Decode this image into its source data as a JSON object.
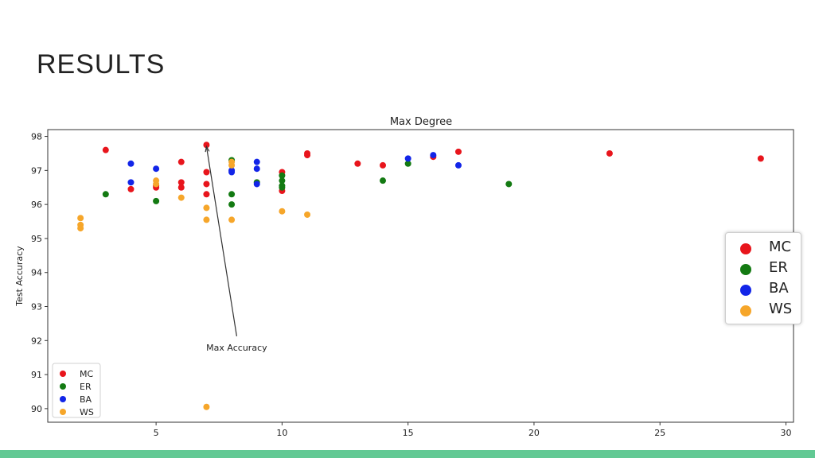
{
  "slide": {
    "title": "RESULTS"
  },
  "colors": {
    "MC": "#e8151c",
    "ER": "#137a12",
    "BA": "#1225e8",
    "WS": "#f6a62a",
    "accent": "#62c994"
  },
  "chart_data": {
    "type": "scatter",
    "title": "Max Degree",
    "xlabel": "",
    "ylabel": "Test Accuracy",
    "xlim": [
      0.7,
      30.3
    ],
    "ylim": [
      89.6,
      98.2
    ],
    "xticks": [
      5,
      10,
      15,
      20,
      25,
      30
    ],
    "yticks": [
      90,
      91,
      92,
      93,
      94,
      95,
      96,
      97,
      98
    ],
    "grid": false,
    "legend_placement": "lower-left",
    "legend_entries": [
      "MC",
      "ER",
      "BA",
      "WS"
    ],
    "annotation": {
      "text": "Max Accuracy",
      "point": [
        7,
        97.75
      ],
      "text_at": [
        8.2,
        91.8
      ]
    },
    "series": [
      {
        "name": "MC",
        "color": "#e8151c",
        "points": [
          [
            3,
            97.6
          ],
          [
            4,
            96.45
          ],
          [
            5,
            96.5
          ],
          [
            5,
            96.55
          ],
          [
            6,
            97.25
          ],
          [
            6,
            96.65
          ],
          [
            6,
            96.5
          ],
          [
            7,
            97.75
          ],
          [
            7,
            96.95
          ],
          [
            7,
            96.6
          ],
          [
            7,
            96.3
          ],
          [
            10,
            96.95
          ],
          [
            10,
            96.4
          ],
          [
            11,
            97.5
          ],
          [
            11,
            97.45
          ],
          [
            13,
            97.2
          ],
          [
            14,
            97.15
          ],
          [
            16,
            97.4
          ],
          [
            17,
            97.55
          ],
          [
            23,
            97.5
          ],
          [
            29,
            97.35
          ]
        ]
      },
      {
        "name": "ER",
        "color": "#137a12",
        "points": [
          [
            3,
            96.3
          ],
          [
            5,
            96.1
          ],
          [
            8,
            97.3
          ],
          [
            8,
            96.3
          ],
          [
            8,
            96.0
          ],
          [
            9,
            96.65
          ],
          [
            10,
            96.85
          ],
          [
            10,
            96.7
          ],
          [
            10,
            96.55
          ],
          [
            10,
            96.5
          ],
          [
            14,
            96.7
          ],
          [
            15,
            97.2
          ],
          [
            19,
            96.6
          ]
        ]
      },
      {
        "name": "BA",
        "color": "#1225e8",
        "points": [
          [
            4,
            97.2
          ],
          [
            4,
            96.65
          ],
          [
            5,
            97.05
          ],
          [
            8,
            97.0
          ],
          [
            8,
            96.95
          ],
          [
            9,
            97.25
          ],
          [
            9,
            97.05
          ],
          [
            9,
            96.6
          ],
          [
            15,
            97.35
          ],
          [
            16,
            97.45
          ],
          [
            17,
            97.15
          ]
        ]
      },
      {
        "name": "WS",
        "color": "#f6a62a",
        "points": [
          [
            2,
            95.6
          ],
          [
            2,
            95.4
          ],
          [
            2,
            95.3
          ],
          [
            5,
            96.7
          ],
          [
            5,
            96.6
          ],
          [
            6,
            96.2
          ],
          [
            7,
            95.9
          ],
          [
            7,
            95.55
          ],
          [
            7,
            90.05
          ],
          [
            8,
            97.25
          ],
          [
            8,
            97.15
          ],
          [
            8,
            95.55
          ],
          [
            10,
            95.8
          ],
          [
            11,
            95.7
          ]
        ]
      }
    ]
  }
}
